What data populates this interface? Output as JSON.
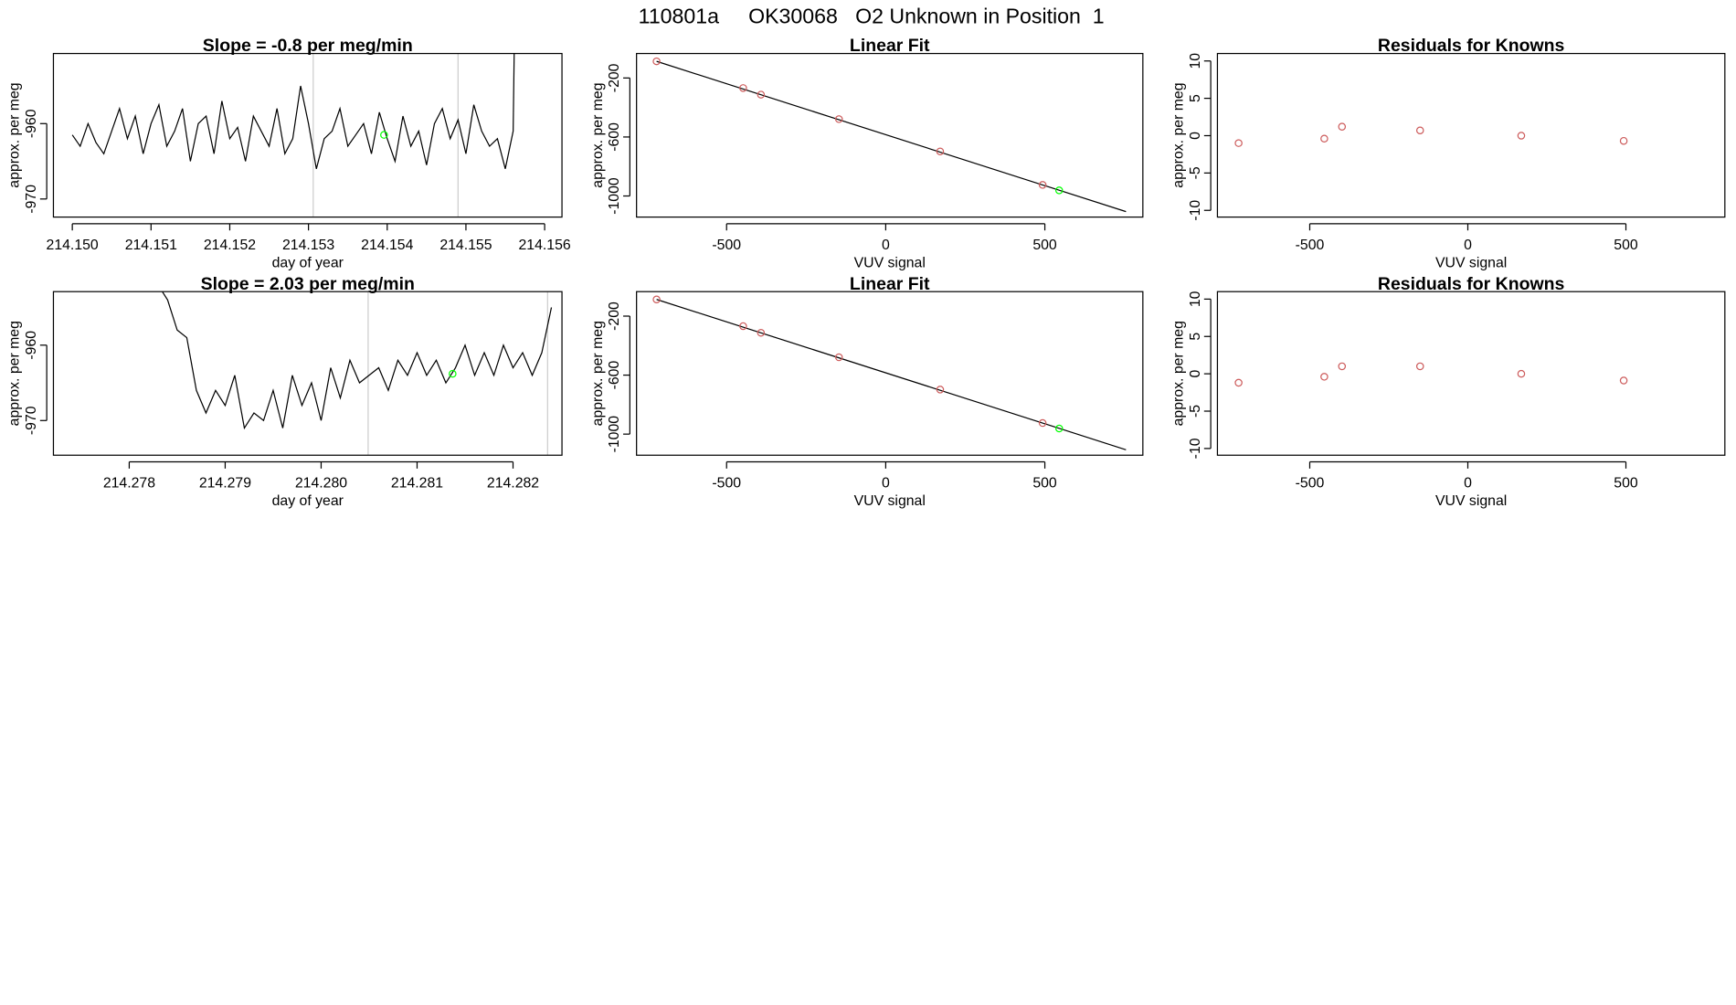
{
  "title": "110801a     OK30068   O2 Unknown in Position  1",
  "chart_data": [
    {
      "type": "line",
      "title": "Slope =  -0.8  per meg/min",
      "xlabel": "day of year",
      "ylabel": "approx. per meg",
      "xlim": [
        214.14976,
        214.15622
      ],
      "ylim": [
        -972.4,
        -950.7
      ],
      "xticks": [
        {
          "value": 214.15,
          "label": "214.150"
        },
        {
          "value": 214.151,
          "label": "214.151"
        },
        {
          "value": 214.152,
          "label": "214.152"
        },
        {
          "value": 214.153,
          "label": "214.153"
        },
        {
          "value": 214.154,
          "label": "214.154"
        },
        {
          "value": 214.155,
          "label": "214.155"
        },
        {
          "value": 214.156,
          "label": "214.156"
        }
      ],
      "yticks": [
        -960,
        -970
      ],
      "vlines": [
        214.15306,
        214.1549
      ],
      "vline_color": "#cccccc",
      "series": [
        {
          "style": "line",
          "color": "#000000",
          "x": [
            214.15,
            214.1501,
            214.1502,
            214.1503,
            214.1504,
            214.1505,
            214.1506,
            214.1507,
            214.1508,
            214.1509,
            214.151,
            214.1511,
            214.1512,
            214.1513,
            214.1514,
            214.1515,
            214.1516,
            214.1517,
            214.1518,
            214.1519,
            214.152,
            214.1521,
            214.1522,
            214.1523,
            214.1524,
            214.1525,
            214.1526,
            214.1527,
            214.1528,
            214.1529,
            214.153,
            214.1531,
            214.1532,
            214.1533,
            214.1534,
            214.1535,
            214.1536,
            214.1537,
            214.1538,
            214.1539,
            214.154,
            214.1541,
            214.1542,
            214.1543,
            214.1544,
            214.1545,
            214.1546,
            214.1547,
            214.1548,
            214.1549,
            214.155,
            214.1551,
            214.1552,
            214.1553,
            214.1554,
            214.1555,
            214.1556,
            214.15562
          ],
          "values": [
            -961.5,
            -963,
            -960,
            -962.5,
            -964,
            -961,
            -958,
            -962,
            -959,
            -964,
            -960,
            -957.5,
            -963,
            -961,
            -958,
            -965,
            -960,
            -959,
            -964,
            -957,
            -962,
            -960.5,
            -965,
            -959,
            -961,
            -963,
            -958,
            -964,
            -962,
            -955,
            -960,
            -966,
            -962,
            -961,
            -958,
            -963,
            -961.5,
            -960,
            -964,
            -958.5,
            -962,
            -965,
            -959,
            -963,
            -961,
            -965.5,
            -960,
            -958,
            -962,
            -959.5,
            -964,
            -957.5,
            -961,
            -963,
            -962,
            -966,
            -961,
            -945
          ]
        },
        {
          "style": "points",
          "color": "#00ff00",
          "x": [
            214.15396
          ],
          "values": [
            -961.5
          ]
        }
      ]
    },
    {
      "type": "line",
      "title": "Linear Fit",
      "xlabel": "VUV signal",
      "ylabel": "approx. per meg",
      "xlim": [
        -783,
        808
      ],
      "ylim": [
        -1143,
        -34
      ],
      "xticks": [
        -500,
        0,
        500
      ],
      "yticks": [
        -200,
        -600,
        -1000
      ],
      "series": [
        {
          "style": "line",
          "color": "#000000",
          "x": [
            -720,
            755
          ],
          "values": [
            -87,
            -1106
          ]
        },
        {
          "style": "points",
          "color": "#cd5c5c",
          "x": [
            -720,
            -448,
            -392,
            -147,
            171,
            493
          ],
          "values": [
            -87,
            -268,
            -313,
            -479,
            -698,
            -925
          ]
        },
        {
          "style": "points",
          "color": "#00ff00",
          "x": [
            545
          ],
          "values": [
            -962
          ]
        }
      ]
    },
    {
      "type": "scatter",
      "title": "Residuals for Knowns",
      "xlabel": "VUV signal",
      "ylabel": "approx. per meg",
      "xlim": [
        -792,
        813
      ],
      "ylim": [
        -10.9,
        11
      ],
      "xticks": [
        -500,
        0,
        500
      ],
      "yticks": [
        10,
        5,
        0,
        -5,
        -10
      ],
      "series": [
        {
          "style": "points",
          "color": "#cd5c5c",
          "x": [
            -725,
            -454,
            -398,
            -151,
            169,
            493
          ],
          "values": [
            -1,
            -0.4,
            1.2,
            0.7,
            0,
            -0.7
          ]
        }
      ]
    },
    {
      "type": "line",
      "title": "Slope =  2.03  per meg/min",
      "xlabel": "day of year",
      "ylabel": "approx. per meg",
      "xlim": [
        214.27721,
        214.28251
      ],
      "ylim": [
        -974.6,
        -952.9
      ],
      "xticks": [
        {
          "value": 214.278,
          "label": "214.278"
        },
        {
          "value": 214.279,
          "label": "214.279"
        },
        {
          "value": 214.28,
          "label": "214.280"
        },
        {
          "value": 214.281,
          "label": "214.281"
        },
        {
          "value": 214.282,
          "label": "214.282"
        }
      ],
      "yticks": [
        -960,
        -970
      ],
      "vlines": [
        214.28049,
        214.28236
      ],
      "vline_color": "#cccccc",
      "series": [
        {
          "style": "line",
          "color": "#000000",
          "x": [
            214.2783,
            214.2784,
            214.2785,
            214.2786,
            214.2787,
            214.2788,
            214.2789,
            214.279,
            214.2791,
            214.2792,
            214.2793,
            214.2794,
            214.2795,
            214.2796,
            214.2797,
            214.2798,
            214.2799,
            214.28,
            214.2801,
            214.2802,
            214.2803,
            214.2804,
            214.2805,
            214.2806,
            214.2807,
            214.2808,
            214.2809,
            214.281,
            214.2811,
            214.2812,
            214.2813,
            214.2814,
            214.2815,
            214.2816,
            214.2817,
            214.2818,
            214.2819,
            214.282,
            214.2821,
            214.2822,
            214.2823,
            214.2824
          ],
          "values": [
            -952,
            -954,
            -958,
            -959,
            -966,
            -969,
            -966,
            -968,
            -964,
            -971,
            -969,
            -970,
            -966,
            -971,
            -964,
            -968,
            -965,
            -970,
            -963,
            -967,
            -962,
            -965,
            -964,
            -963,
            -966,
            -962,
            -964,
            -961,
            -964,
            -962,
            -965,
            -963,
            -960,
            -964,
            -961,
            -964,
            -960,
            -963,
            -961,
            -964,
            -961,
            -955
          ]
        },
        {
          "style": "points",
          "color": "#00ff00",
          "x": [
            214.28137
          ],
          "values": [
            -963.8
          ]
        }
      ]
    },
    {
      "type": "line",
      "title": "Linear Fit",
      "xlabel": "VUV signal",
      "ylabel": "approx. per meg",
      "xlim": [
        -783,
        808
      ],
      "ylim": [
        -1143,
        -34
      ],
      "xticks": [
        -500,
        0,
        500
      ],
      "yticks": [
        -200,
        -600,
        -1000
      ],
      "series": [
        {
          "style": "line",
          "color": "#000000",
          "x": [
            -720,
            755
          ],
          "values": [
            -87,
            -1106
          ]
        },
        {
          "style": "points",
          "color": "#cd5c5c",
          "x": [
            -720,
            -448,
            -392,
            -147,
            171,
            493
          ],
          "values": [
            -87,
            -268,
            -313,
            -479,
            -698,
            -925
          ]
        },
        {
          "style": "points",
          "color": "#00ff00",
          "x": [
            545
          ],
          "values": [
            -962
          ]
        }
      ]
    },
    {
      "type": "scatter",
      "title": "Residuals for Knowns",
      "xlabel": "VUV signal",
      "ylabel": "approx. per meg",
      "xlim": [
        -792,
        813
      ],
      "ylim": [
        -10.9,
        11
      ],
      "xticks": [
        -500,
        0,
        500
      ],
      "yticks": [
        10,
        5,
        0,
        -5,
        -10
      ],
      "series": [
        {
          "style": "points",
          "color": "#cd5c5c",
          "x": [
            -725,
            -454,
            -398,
            -151,
            169,
            493
          ],
          "values": [
            -1.2,
            -0.4,
            1,
            1,
            0,
            -0.9
          ]
        }
      ]
    }
  ]
}
